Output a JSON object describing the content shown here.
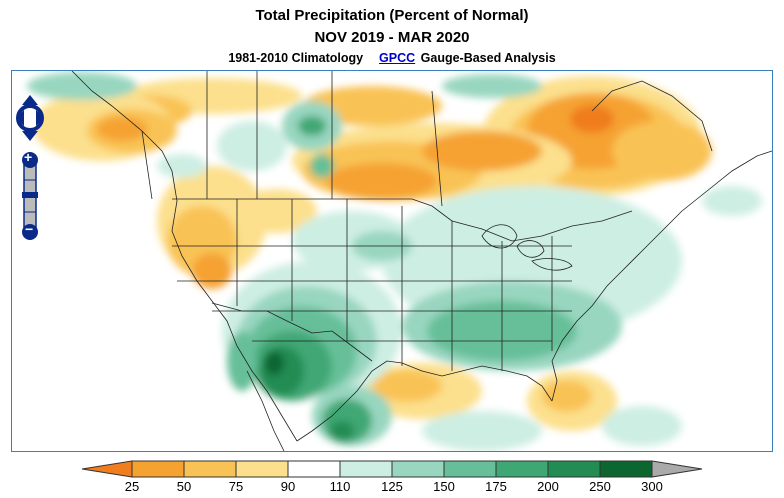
{
  "header": {
    "title": "Total Precipitation (Percent of Normal)",
    "period": "NOV 2019 - MAR 2020",
    "climatology": "1981-2010 Climatology",
    "source_link": "GPCC",
    "analysis": "Gauge-Based Analysis"
  },
  "map": {
    "region": "North America",
    "layer": "precipitation percent of normal"
  },
  "controls": {
    "zoom_in_symbol": "+",
    "zoom_out_symbol": "−"
  },
  "legend": {
    "breaks": [
      "25",
      "50",
      "75",
      "90",
      "110",
      "125",
      "150",
      "175",
      "200",
      "250",
      "300"
    ],
    "colors": {
      "below_25": "#f07d1e",
      "25_50": "#f5a230",
      "50_75": "#f9c255",
      "75_90": "#fce08d",
      "90_110": "#ffffff",
      "110_125": "#cdeee3",
      "125_150": "#98d6c0",
      "150_175": "#66bf99",
      "175_200": "#3fa774",
      "200_250": "#238c52",
      "250_300": "#0c6630",
      "above_300": "#aaaaaa"
    }
  },
  "colors": {
    "border": "#3a7fc0",
    "control_blue": "#0a2a8a",
    "link": "#0000cc"
  }
}
